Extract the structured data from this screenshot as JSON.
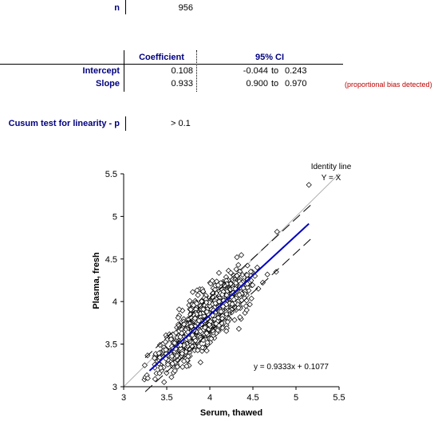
{
  "n_block": {
    "label": "n",
    "value": "956"
  },
  "table": {
    "headers": {
      "coefficient": "Coefficient",
      "ci": "95% CI"
    },
    "rows": [
      {
        "label": "Intercept",
        "coef": "0.108",
        "ci_low": "-0.044",
        "to": "to",
        "ci_high": "0.243"
      },
      {
        "label": "Slope",
        "coef": "0.933",
        "ci_low": "0.900",
        "to": "to",
        "ci_high": "0.970"
      }
    ],
    "note": "(proportional bias detected)"
  },
  "cusum": {
    "label": "Cusum test for linearity - p",
    "value": "> 0.1"
  },
  "chart_data": {
    "type": "scatter",
    "xlabel": "Serum, thawed",
    "ylabel": "Plasma, fresh",
    "xlim": [
      3,
      5.5
    ],
    "ylim": [
      3,
      5.5
    ],
    "xticks": [
      "3",
      "3.5",
      "4",
      "4.5",
      "5",
      "5.5"
    ],
    "yticks": [
      "3",
      "3.5",
      "4",
      "4.5",
      "5",
      "5.5"
    ],
    "identity_label_1": "Identity line",
    "identity_label_2": "Y = X",
    "equation": "y = 0.9333x + 0.1077",
    "fit": {
      "slope": 0.9333,
      "intercept": 0.1077,
      "x_range": [
        3.3,
        5.15
      ]
    },
    "band_offsets": [
      -0.2,
      0.2
    ],
    "band_x_range": [
      3.25,
      5.2
    ],
    "n_points": 956,
    "outliers": [
      [
        3.28,
        3.1
      ],
      [
        5.15,
        5.37
      ],
      [
        4.78,
        4.82
      ],
      [
        4.55,
        4.4
      ],
      [
        3.7,
        3.3
      ]
    ],
    "colors": {
      "fit": "#0000c0",
      "identity": "#b0b0b0",
      "points": "#000000",
      "band": "#000000"
    }
  }
}
